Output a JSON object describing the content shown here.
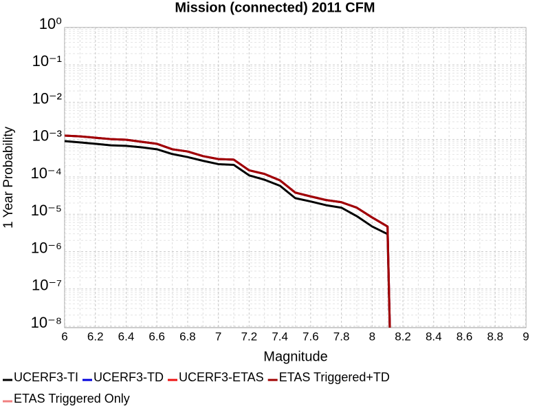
{
  "chart_data": {
    "type": "line",
    "title": "Mission (connected) 2011 CFM",
    "x_label": "Magnitude",
    "y_label": "1 Year Probability",
    "log_y": true,
    "grid": true,
    "legend": "bottom",
    "x": [
      6.0,
      6.1,
      6.2,
      6.3,
      6.4,
      6.5,
      6.6,
      6.7,
      6.8,
      6.9,
      7.0,
      7.1,
      7.2,
      7.3,
      7.4,
      7.5,
      7.6,
      7.7,
      7.8,
      7.9,
      8.0,
      8.1,
      8.12
    ],
    "series": [
      {
        "name": "UCERF3-TI",
        "color": "#000000",
        "values": [
          0.00091,
          0.00084,
          0.00077,
          0.0007,
          0.00068,
          0.00062,
          0.00055,
          0.00041,
          0.00034,
          0.00027,
          0.00022,
          0.00021,
          0.00011,
          8.4e-05,
          5.8e-05,
          2.7e-05,
          2.2e-05,
          1.75e-05,
          1.5e-05,
          8.9e-06,
          4.7e-06,
          2.95e-06,
          1e-09
        ]
      },
      {
        "name": "UCERF3-TD",
        "color": "#0000dd",
        "values": [
          0.00128,
          0.00122,
          0.00112,
          0.00103,
          0.00099,
          0.00087,
          0.00077,
          0.00055,
          0.00048,
          0.00036,
          0.0003,
          0.00029,
          0.00015,
          0.00012,
          8.1e-05,
          3.8e-05,
          3e-05,
          2.4e-05,
          2.1e-05,
          1.5e-05,
          8.2e-06,
          4.7e-06,
          1e-09
        ]
      },
      {
        "name": "UCERF3-ETAS",
        "color": "#ee1111",
        "values": [
          0.00128,
          0.00122,
          0.00112,
          0.00103,
          0.00099,
          0.00087,
          0.00077,
          0.00055,
          0.00048,
          0.00036,
          0.0003,
          0.00029,
          0.00015,
          0.00012,
          8.1e-05,
          3.8e-05,
          3e-05,
          2.4e-05,
          2.1e-05,
          1.5e-05,
          8.2e-06,
          4.7e-06,
          1e-09
        ]
      },
      {
        "name": "ETAS Triggered+TD",
        "color": "#a00000",
        "values": [
          0.00128,
          0.00122,
          0.00112,
          0.00103,
          0.00099,
          0.00087,
          0.00077,
          0.00055,
          0.00048,
          0.00036,
          0.0003,
          0.00029,
          0.00015,
          0.00012,
          8.1e-05,
          3.8e-05,
          3e-05,
          2.4e-05,
          2.1e-05,
          1.5e-05,
          8.2e-06,
          4.7e-06,
          1e-09
        ]
      },
      {
        "name": "ETAS Triggered Only",
        "color": "#f08080",
        "values": [
          null,
          null,
          null,
          null,
          null,
          null,
          null,
          null,
          null,
          null,
          null,
          null,
          null,
          null,
          null,
          null,
          null,
          null,
          null,
          null,
          null,
          null,
          null
        ]
      }
    ],
    "xlim": [
      6,
      9
    ],
    "xticks": [
      6,
      6.2,
      6.4,
      6.6,
      6.8,
      7,
      7.2,
      7.4,
      7.6,
      7.8,
      8,
      8.2,
      8.4,
      8.6,
      8.8,
      9
    ],
    "ylim": [
      9.2e-09,
      1
    ],
    "yticks": [
      {
        "value": 1,
        "label": "10⁰"
      },
      {
        "value": 0.1,
        "label": "10⁻¹"
      },
      {
        "value": 0.01,
        "label": "10⁻²"
      },
      {
        "value": 0.001,
        "label": "10⁻³"
      },
      {
        "value": 0.0001,
        "label": "10⁻⁴"
      },
      {
        "value": 1e-05,
        "label": "10⁻⁵"
      },
      {
        "value": 1e-06,
        "label": "10⁻⁶"
      },
      {
        "value": 1e-07,
        "label": "10⁻⁷"
      },
      {
        "value": 1e-08,
        "label": "10⁻⁸"
      }
    ]
  }
}
